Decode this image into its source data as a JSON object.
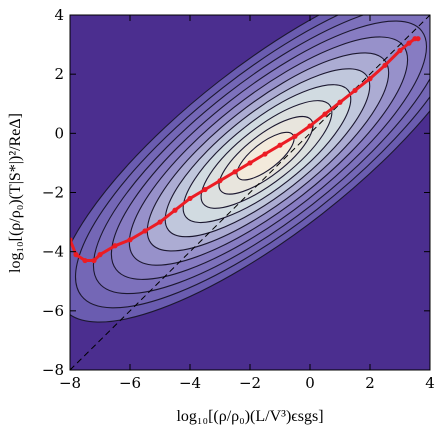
{
  "chart_data": {
    "type": "heatmap",
    "xlabel": "log₁₀[(ρ/ρ₀)(L/V³)ϵsgs]",
    "ylabel": "log₁₀[(ρ/ρ₀)(T|S*|)²/ReΔ]",
    "xlim": [
      -8,
      4
    ],
    "ylim": [
      -8,
      4
    ],
    "x_ticks": [
      "−8",
      "−6",
      "−4",
      "−2",
      "0",
      "2",
      "4"
    ],
    "y_ticks": [
      "−8",
      "−6",
      "−4",
      "−2",
      "0",
      "2",
      "4"
    ],
    "grid": false,
    "background_color": "#4b2e8f",
    "colors": {
      "low": "#4b2e8f",
      "mid": "#8a7fc4",
      "high": "#cdd9e2",
      "peak": "#f3eadb",
      "contour": "#1c1830",
      "mean_curve": "#ec1c24",
      "reference_line": "#000000"
    },
    "density": {
      "shape": "elongated ridge along the mean curve",
      "peak_center": [
        -1.5,
        -0.8
      ],
      "contour_levels": 11
    },
    "series": [
      {
        "type": "line",
        "style": "solid red with point markers",
        "x": [
          -8.0,
          -7.8,
          -7.5,
          -7.2,
          -7.0,
          -6.5,
          -6.0,
          -5.5,
          -5.0,
          -4.5,
          -4.0,
          -3.5,
          -3.0,
          -2.5,
          -2.0,
          -1.5,
          -1.0,
          -0.5,
          0.0,
          0.5,
          1.0,
          1.5,
          2.0,
          2.5,
          3.0,
          3.3,
          3.5,
          3.6
        ],
        "y": [
          -3.6,
          -4.1,
          -4.3,
          -4.3,
          -4.1,
          -3.8,
          -3.6,
          -3.3,
          -3.0,
          -2.6,
          -2.2,
          -1.9,
          -1.6,
          -1.3,
          -1.0,
          -0.7,
          -0.4,
          -0.1,
          0.25,
          0.65,
          1.05,
          1.45,
          1.85,
          2.3,
          2.8,
          3.05,
          3.2,
          3.2
        ]
      },
      {
        "type": "line",
        "style": "dashed black",
        "x": [
          -8,
          4
        ],
        "y": [
          -8,
          4
        ]
      }
    ]
  }
}
